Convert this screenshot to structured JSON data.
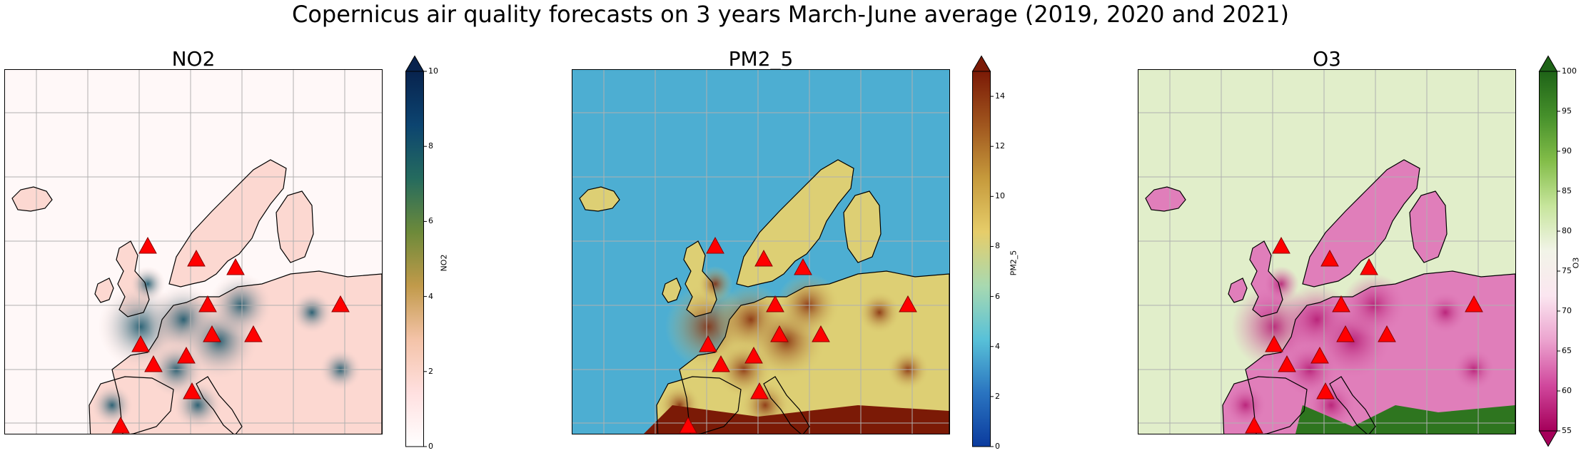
{
  "suptitle": "Copernicus air quality forecasts on 3 years March-June average (2019, 2020 and 2021)",
  "chart_data": [
    {
      "type": "heatmap",
      "title": "NO2",
      "colorbar_label": "NO2",
      "vmin": 0,
      "vmax": 10,
      "colorbar_ticks": [
        0,
        2,
        4,
        6,
        8,
        10
      ],
      "colorbar_tick_labels": [
        "0",
        "2",
        "4",
        "6",
        "8",
        "10"
      ],
      "colormap": [
        "#ffffff",
        "#ffe0e0",
        "#f4c3a8",
        "#c19a4a",
        "#6d8a3a",
        "#256b5e",
        "#0c4470",
        "#08234e"
      ],
      "extend": "max",
      "marker_color": "#ff0000",
      "grid": true
    },
    {
      "type": "heatmap",
      "title": "PM2_5",
      "colorbar_label": "PM2_5",
      "vmin": 0,
      "vmax": 15,
      "colorbar_ticks": [
        0,
        2,
        4,
        6,
        8,
        10,
        12,
        14
      ],
      "colorbar_tick_labels": [
        "0",
        "2",
        "4",
        "6",
        "8",
        "10",
        "12",
        "14"
      ],
      "colormap": [
        "#0b3b9e",
        "#2a74c0",
        "#58c1d8",
        "#a8d9b0",
        "#e6cd6a",
        "#c69a3c",
        "#a0561e",
        "#7b1a06"
      ],
      "extend": "max",
      "marker_color": "#ff0000",
      "grid": true
    },
    {
      "type": "heatmap",
      "title": "O3",
      "colorbar_label": "O3",
      "vmin": 55,
      "vmax": 100,
      "colorbar_ticks": [
        55,
        60,
        65,
        70,
        75,
        80,
        85,
        90,
        95,
        100
      ],
      "colorbar_tick_labels": [
        "55",
        "60",
        "65",
        "70",
        "75",
        "80",
        "85",
        "90",
        "95",
        "100"
      ],
      "colormap": [
        "#a5005a",
        "#d0479c",
        "#eba2ce",
        "#fbe6f0",
        "#f2f4e8",
        "#c7e59c",
        "#83bd49",
        "#46902b",
        "#1e6317"
      ],
      "extend": "both",
      "marker_color": "#ff0000",
      "grid": true
    }
  ]
}
